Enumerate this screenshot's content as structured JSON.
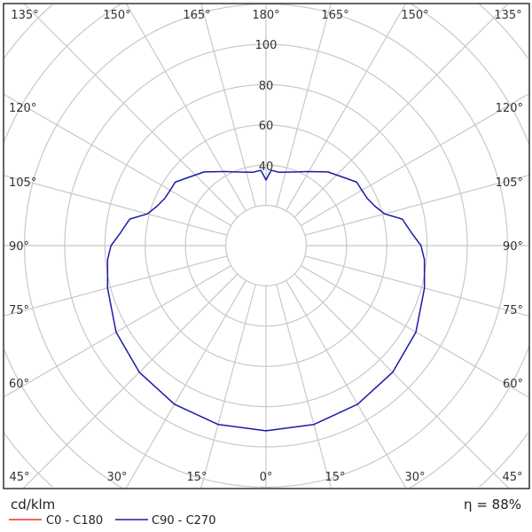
{
  "chart_data": {
    "type": "polar",
    "unit_label": "cd/klm",
    "efficiency_label": "η = 88%",
    "radial_ticks": [
      20,
      40,
      60,
      80,
      100
    ],
    "radial_tick_labels": [
      "40",
      "60",
      "80",
      "100"
    ],
    "radial_range": [
      0,
      100
    ],
    "angle_labels_top": [
      "135°",
      "150°",
      "165°",
      "180°",
      "165°",
      "150°",
      "135°"
    ],
    "angle_labels_sides": [
      "120°",
      "105°",
      "90°",
      "75°",
      "60°"
    ],
    "angle_labels_bottom": [
      "45°",
      "30°",
      "15°",
      "0°",
      "15°",
      "30°",
      "45°"
    ],
    "grid": true,
    "legend_position": "bottom-left",
    "series": [
      {
        "name": "C0 - C180",
        "color": "#e8322a",
        "gamma": [],
        "values": []
      },
      {
        "name": "C90 - C270",
        "color": "#1a1aa8",
        "gamma": [
          0,
          15,
          30,
          45,
          60,
          75,
          85,
          90,
          95,
          101,
          105,
          110,
          115,
          120,
          125,
          130,
          140,
          150,
          160,
          170,
          176,
          178,
          180
        ],
        "values": [
          92,
          92,
          91,
          89,
          86,
          81.5,
          79,
          77,
          72.6,
          69,
          61,
          57.5,
          55.5,
          55,
          55,
          52,
          47.8,
          42.5,
          38.9,
          37,
          37.5,
          35,
          32.6
        ]
      }
    ]
  }
}
